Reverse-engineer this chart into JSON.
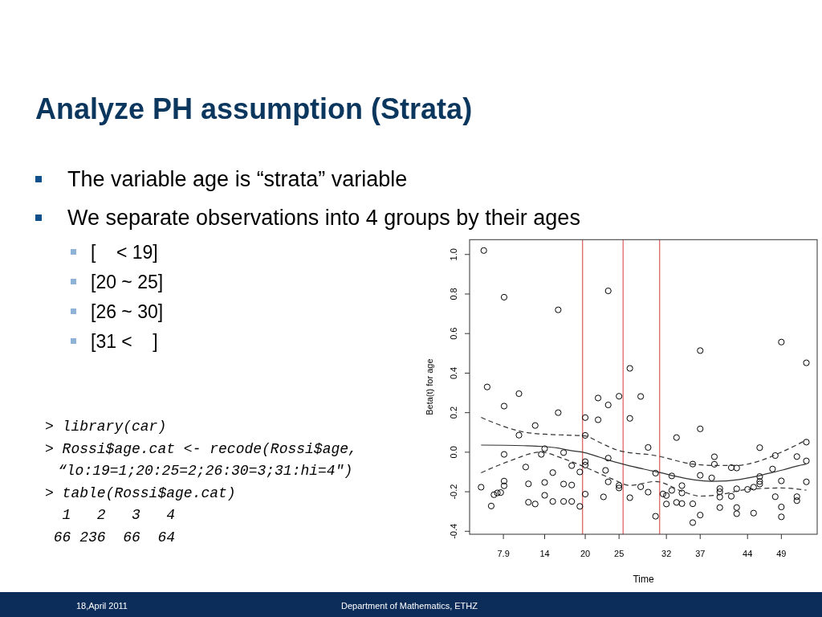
{
  "chart_data": {
    "type": "scatter",
    "title": "Analyze PH assumption (Strata)",
    "xlabel": "Time",
    "ylabel": "Beta(t) for age",
    "annotations": [
      "The variable age is “strata” variable",
      "We separate observations into 4 groups by their ages",
      "[    < 19]",
      "[20 ~ 25]",
      "[26 ~ 30]",
      "[31 <    ]",
      "> library(car)",
      "> Rossi$age.cat <- recode(Rossi$age,",
      "“lo:19=1;20:25=2;26:30=3;31:hi=4\")",
      "> table(Rossi$age.cat)",
      "  1   2   3   4",
      " 66 236  66  64",
      "18,April 2011",
      "Department of Mathematics, ETHZ"
    ],
    "xlim": [
      2.9,
      54.3
    ],
    "ylim": [
      -0.415,
      1.075
    ],
    "xticks": [
      7.9,
      14,
      20,
      25,
      32,
      37,
      44,
      49
    ],
    "yticks": [
      {
        "value": -0.4,
        "label": "-0.4"
      },
      {
        "value": -0.2,
        "label": "-0.2"
      },
      {
        "value": 0,
        "label": "0.0"
      },
      {
        "value": 0.2,
        "label": "0.2"
      },
      {
        "value": 0.4,
        "label": "0.4"
      },
      {
        "value": 0.6,
        "label": "0.6"
      },
      {
        "value": 0.8,
        "label": "0.8"
      },
      {
        "value": 1.0,
        "label": "1.0"
      }
    ],
    "ref_lines": [
      {
        "axis": "x",
        "value": 19.6,
        "color": "#e06666"
      },
      {
        "axis": "x",
        "value": 25.6,
        "color": "#e06666"
      },
      {
        "axis": "x",
        "value": 31.0,
        "color": "#e06666"
      }
    ],
    "series": [
      {
        "color": "#000000",
        "marker": "circle",
        "x": [
          5.0,
          8.0,
          16.0,
          23.4,
          5.5,
          10.2,
          8.0,
          16.0,
          12.6,
          10.2,
          20.0,
          20.0,
          21.9,
          21.9,
          23.4,
          25.0,
          26.6,
          26.6,
          8.0,
          14.0,
          13.5,
          16.8,
          11.2,
          15.2,
          18.0,
          19.2,
          20.0,
          20.0,
          23.4,
          23.0,
          4.6,
          8.0,
          8.0,
          6.5,
          7.0,
          7.5,
          11.6,
          14.0,
          16.8,
          18.0,
          23.4,
          25.0,
          25.0,
          6.1,
          11.6,
          12.6,
          14.0,
          15.2,
          16.8,
          18.0,
          19.2,
          20.0,
          22.7,
          26.6,
          28.2,
          29.3,
          30.4,
          28.2,
          29.3,
          30.4,
          31.5,
          32.0,
          32.0,
          32.8,
          32.8,
          33.5,
          33.5,
          34.3,
          34.3,
          34.3,
          35.9,
          35.9,
          35.9,
          37.0,
          37.0,
          37.0,
          37.0,
          38.7,
          39.1,
          39.1,
          39.9,
          39.9,
          39.9,
          39.9,
          41.6,
          42.4,
          41.6,
          42.4,
          42.4,
          42.4,
          44.0,
          44.9,
          44.9,
          45.8,
          45.8,
          45.8,
          45.8,
          47.7,
          48.1,
          48.1,
          49.0,
          49.0,
          49.0,
          49.0,
          51.3,
          51.3,
          51.3,
          52.7,
          52.7,
          52.7,
          52.7
        ],
        "values": [
          1.02,
          0.784,
          0.72,
          0.816,
          0.33,
          0.296,
          0.233,
          0.2,
          0.135,
          0.086,
          0.175,
          0.085,
          0.274,
          0.164,
          0.239,
          0.283,
          0.424,
          0.171,
          -0.011,
          0.018,
          -0.011,
          -0.002,
          -0.075,
          -0.103,
          -0.068,
          -0.1,
          -0.048,
          -0.065,
          -0.03,
          -0.092,
          -0.177,
          -0.146,
          -0.17,
          -0.215,
          -0.206,
          -0.204,
          -0.16,
          -0.153,
          -0.161,
          -0.166,
          -0.15,
          -0.168,
          -0.181,
          -0.272,
          -0.253,
          -0.262,
          -0.218,
          -0.249,
          -0.249,
          -0.249,
          -0.274,
          -0.212,
          -0.226,
          -0.23,
          0.282,
          0.024,
          -0.106,
          -0.175,
          -0.202,
          -0.324,
          -0.211,
          -0.219,
          -0.262,
          -0.12,
          -0.193,
          0.074,
          -0.254,
          -0.169,
          -0.206,
          -0.26,
          -0.06,
          -0.261,
          -0.356,
          0.514,
          0.118,
          -0.117,
          -0.318,
          -0.13,
          -0.023,
          -0.061,
          -0.184,
          -0.2,
          -0.227,
          -0.28,
          -0.078,
          -0.08,
          -0.223,
          -0.185,
          -0.28,
          -0.311,
          -0.188,
          -0.177,
          -0.308,
          0.023,
          -0.123,
          -0.148,
          -0.161,
          -0.085,
          -0.017,
          -0.225,
          0.557,
          -0.145,
          -0.277,
          -0.327,
          -0.022,
          -0.225,
          -0.245,
          0.452,
          0.051,
          -0.044,
          -0.15
        ]
      },
      {
        "type": "line",
        "color": "#333333",
        "line_style": "solid",
        "x": [
          4.6,
          8.1,
          10.9,
          13.7,
          16.1,
          17.9,
          20.0,
          22.1,
          23.9,
          26.1,
          28.6,
          31.3,
          33.4,
          35.3,
          37.0,
          38.9,
          40.9,
          42.8,
          44.9,
          47.0,
          49.2,
          51.3,
          52.7
        ],
        "values": [
          0.036,
          0.035,
          0.033,
          0.029,
          0.02,
          0.008,
          -0.003,
          -0.025,
          -0.045,
          -0.065,
          -0.085,
          -0.105,
          -0.122,
          -0.135,
          -0.143,
          -0.147,
          -0.145,
          -0.138,
          -0.125,
          -0.108,
          -0.09,
          -0.07,
          -0.06
        ]
      },
      {
        "type": "line",
        "color": "#333333",
        "line_style": "dashed",
        "x": [
          4.6,
          7.8,
          10.9,
          14.0,
          16.8,
          20.0,
          22.2,
          25.0,
          30.4,
          35.9,
          39.1,
          42.4,
          45.8,
          49.0,
          52.7
        ],
        "values": [
          0.176,
          0.132,
          0.102,
          0.091,
          0.087,
          0.082,
          0.048,
          0.008,
          -0.017,
          -0.06,
          -0.067,
          -0.067,
          -0.044,
          0.0,
          0.062
        ]
      },
      {
        "type": "line",
        "color": "#333333",
        "line_style": "dashed",
        "x": [
          4.6,
          8.7,
          13.4,
          16.8,
          20.0,
          23.9,
          26.6,
          30.4,
          34.5,
          37.0,
          39.8,
          44.0,
          49.0,
          52.7
        ],
        "values": [
          -0.104,
          -0.046,
          0.0,
          -0.033,
          -0.076,
          -0.134,
          -0.168,
          -0.148,
          -0.2,
          -0.222,
          -0.215,
          -0.188,
          -0.181,
          -0.192
        ]
      }
    ]
  }
}
